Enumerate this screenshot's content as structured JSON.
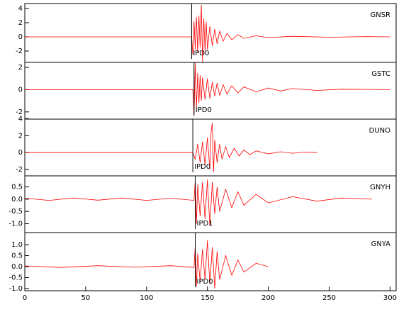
{
  "chart_data": [
    {
      "type": "line",
      "label": "GNSR",
      "pick": {
        "x": 137,
        "label": "IPD0"
      },
      "xlim": [
        0,
        305
      ],
      "ylim": [
        -3.6,
        4.7
      ],
      "yticks": [
        -2,
        0,
        2,
        4
      ],
      "x": [
        0,
        135,
        137,
        138,
        139,
        140,
        141,
        142,
        143,
        144,
        145,
        146,
        147,
        148,
        149,
        150,
        152,
        154,
        156,
        158,
        160,
        163,
        166,
        170,
        175,
        180,
        190,
        200,
        220,
        250,
        280,
        300
      ],
      "series": [
        {
          "color": "#ff0000",
          "values": [
            0,
            0,
            0,
            -2.5,
            2.2,
            -1.8,
            2.8,
            -2.2,
            3.0,
            -1.5,
            4.5,
            -3.6,
            2.6,
            -2.0,
            2.1,
            -1.8,
            1.5,
            -1.3,
            1.1,
            -1.0,
            0.8,
            -0.6,
            0.5,
            -0.4,
            0.3,
            -0.2,
            0.15,
            -0.1,
            0.08,
            -0.05,
            0.04,
            0
          ]
        }
      ]
    },
    {
      "type": "line",
      "label": "GSTC",
      "pick": {
        "x": 139,
        "label": "IPD0"
      },
      "xlim": [
        0,
        305
      ],
      "ylim": [
        -2.65,
        2.45
      ],
      "yticks": [
        -2,
        0,
        2
      ],
      "x": [
        0,
        138,
        139,
        140,
        141,
        142,
        143,
        144,
        145,
        146,
        148,
        150,
        152,
        154,
        156,
        158,
        160,
        163,
        166,
        170,
        175,
        180,
        190,
        200,
        210,
        220,
        240,
        260,
        300
      ],
      "series": [
        {
          "color": "#ff0000",
          "values": [
            0,
            0,
            -2.3,
            2.4,
            -1.6,
            1.5,
            -1.2,
            1.3,
            -1.0,
            1.1,
            -0.9,
            1.0,
            -0.8,
            0.7,
            -0.6,
            0.6,
            -0.5,
            0.45,
            -0.4,
            0.35,
            -0.3,
            0.25,
            -0.2,
            0.15,
            -0.12,
            0.1,
            -0.07,
            0.04,
            0
          ]
        }
      ]
    },
    {
      "type": "line",
      "label": "DUNO",
      "pick": {
        "x": 138,
        "label": "IPD0"
      },
      "xlim": [
        0,
        305
      ],
      "ylim": [
        -2.75,
        3.95
      ],
      "yticks": [
        -2,
        0,
        2,
        4
      ],
      "x": [
        0,
        138,
        140,
        142,
        144,
        146,
        148,
        150,
        152,
        153,
        154,
        155,
        156,
        158,
        160,
        162,
        165,
        168,
        172,
        176,
        180,
        185,
        190,
        200,
        210,
        220,
        230,
        240
      ],
      "series": [
        {
          "color": "#ff0000",
          "values": [
            0,
            0,
            -0.8,
            1.0,
            -1.2,
            1.3,
            -1.5,
            1.8,
            -2.0,
            2.5,
            3.5,
            -2.3,
            1.5,
            -1.2,
            1.0,
            -0.8,
            0.7,
            -0.6,
            0.5,
            -0.4,
            0.3,
            -0.25,
            0.2,
            -0.15,
            0.1,
            -0.08,
            0.05,
            0
          ]
        }
      ]
    },
    {
      "type": "line",
      "label": "GNYH",
      "pick": {
        "x": 140,
        "label": "IPD1"
      },
      "xlim": [
        0,
        305
      ],
      "ylim": [
        -1.36,
        0.95
      ],
      "yticks": [
        {
          "value": -1,
          "label": "-1.0"
        },
        {
          "value": -0.5,
          "label": "-0.5"
        },
        {
          "value": 0,
          "label": "0.0"
        },
        {
          "value": 0.5,
          "label": "0.5"
        }
      ],
      "x": [
        0,
        20,
        40,
        60,
        80,
        100,
        120,
        139,
        140,
        141,
        142,
        144,
        146,
        148,
        150,
        152,
        154,
        156,
        158,
        160,
        165,
        170,
        175,
        180,
        190,
        200,
        220,
        240,
        260,
        285
      ],
      "series": [
        {
          "color": "#ff0000",
          "values": [
            0.04,
            -0.05,
            0.05,
            -0.04,
            0.05,
            -0.05,
            0.04,
            -0.05,
            0.8,
            -1.0,
            0.6,
            -0.7,
            0.7,
            -0.8,
            0.8,
            -1.1,
            0.7,
            -0.6,
            0.5,
            -0.5,
            0.4,
            -0.35,
            0.3,
            -0.25,
            0.2,
            -0.15,
            0.1,
            -0.08,
            0.05,
            0
          ]
        }
      ]
    },
    {
      "type": "line",
      "label": "GNYA",
      "pick": {
        "x": 140,
        "label": "IPD0"
      },
      "xlim": [
        0,
        305
      ],
      "ylim": [
        -1.1,
        1.55
      ],
      "yticks": [
        {
          "value": -1,
          "label": "-1.0"
        },
        {
          "value": -0.5,
          "label": "-0.5"
        },
        {
          "value": 0,
          "label": "0.0"
        },
        {
          "value": 0.5,
          "label": "0.5"
        },
        {
          "value": 1,
          "label": "1.0"
        }
      ],
      "xticks": [
        0,
        50,
        100,
        150,
        200,
        250,
        300
      ],
      "x": [
        0,
        30,
        60,
        90,
        120,
        139,
        140,
        141,
        142,
        144,
        146,
        148,
        150,
        152,
        154,
        156,
        158,
        160,
        165,
        170,
        175,
        180,
        190,
        200
      ],
      "series": [
        {
          "color": "#ff0000",
          "values": [
            0.03,
            -0.04,
            0.04,
            -0.03,
            0.04,
            -0.04,
            1.0,
            -0.9,
            0.6,
            -0.7,
            0.8,
            -0.6,
            1.2,
            -0.8,
            0.9,
            -1.0,
            0.7,
            -0.6,
            0.5,
            -0.4,
            0.3,
            -0.25,
            0.15,
            0
          ]
        }
      ]
    }
  ]
}
